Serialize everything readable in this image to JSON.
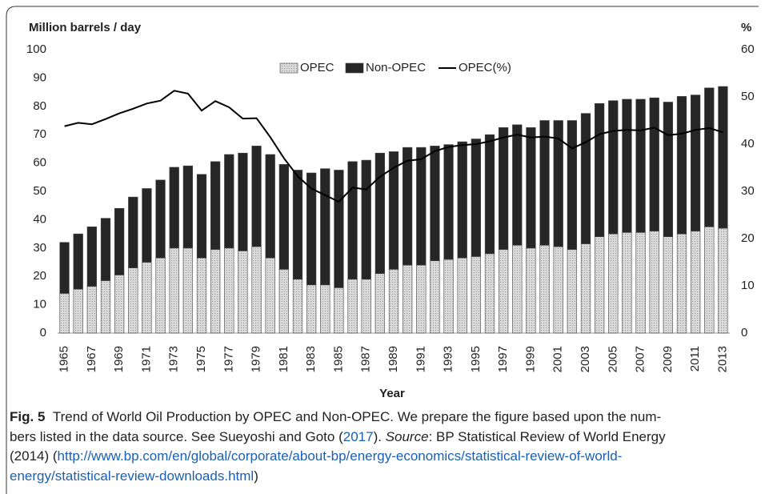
{
  "chart_data": {
    "type": "stacked_bar_line",
    "ylabel": "Million barrels / day",
    "y2label": "%",
    "xlabel": "Year",
    "categories": [
      "1965",
      null,
      "1967",
      null,
      "1969",
      null,
      "1971",
      null,
      "1973",
      null,
      "1975",
      null,
      "1977",
      null,
      "1979",
      null,
      "1981",
      null,
      "1983",
      null,
      "1985",
      null,
      "1987",
      null,
      "1989",
      null,
      "1991",
      null,
      "1993",
      null,
      "1995",
      null,
      "1997",
      null,
      "1999",
      null,
      "2001",
      null,
      "2003",
      null,
      "2005",
      null,
      "2007",
      null,
      "2009",
      null,
      "2011",
      null,
      "2013"
    ],
    "series": [
      {
        "name": "OPEC",
        "color": "#d9d9d9",
        "values": [
          14,
          15.5,
          16.5,
          18.5,
          20.5,
          23,
          25,
          26.5,
          30,
          30,
          26.5,
          29.5,
          30,
          29,
          30.5,
          26.5,
          22.5,
          19,
          17,
          17,
          16,
          19,
          19,
          21,
          22.5,
          24,
          24,
          25.5,
          26,
          26.5,
          27,
          28,
          29.5,
          31,
          30,
          31,
          30.5,
          29.5,
          31.5,
          34,
          35,
          35.5,
          35.5,
          36,
          34,
          35,
          36,
          37.5,
          37
        ]
      },
      {
        "name": "Non-OPEC",
        "color": "#262626",
        "values": [
          18,
          19.5,
          21,
          22,
          23.5,
          25,
          26,
          27.5,
          28.5,
          29,
          29.5,
          31,
          33,
          34.5,
          35.5,
          36.5,
          37,
          38.5,
          39.5,
          41,
          41.5,
          41.5,
          42,
          42.5,
          41.5,
          41.5,
          41.5,
          40.5,
          40.5,
          41,
          41.5,
          42,
          43,
          42.5,
          42.5,
          44,
          44.5,
          45.5,
          46,
          47,
          47,
          47,
          47,
          47,
          47.5,
          48.5,
          48,
          49,
          50
        ]
      },
      {
        "name": "OPEC(%)",
        "color": "#000000",
        "axis": "y2",
        "values": [
          43.8,
          44.5,
          44.2,
          45.3,
          46.5,
          47.5,
          48.6,
          49.2,
          51.3,
          50.7,
          47.1,
          49.1,
          47.8,
          45.4,
          45.5,
          41.5,
          37.0,
          33.2,
          30.6,
          29.2,
          27.8,
          30.8,
          30.4,
          33.1,
          35.0,
          36.5,
          36.8,
          38.5,
          39.4,
          39.8,
          40.0,
          40.6,
          41.4,
          42.0,
          41.4,
          41.6,
          41.2,
          39.1,
          40.4,
          42.1,
          42.8,
          43.0,
          42.9,
          43.5,
          41.9,
          42.2,
          43.0,
          43.4,
          42.5
        ]
      }
    ],
    "ylim": [
      0,
      100
    ],
    "yticks": [
      0,
      10,
      20,
      30,
      40,
      50,
      60,
      70,
      80,
      90,
      100
    ],
    "y2lim": [
      0,
      60
    ],
    "y2ticks": [
      0,
      10,
      20,
      30,
      40,
      50,
      60
    ],
    "legend": "top"
  },
  "caption": {
    "label": "Fig. 5",
    "text1": "Trend of World Oil Production by OPEC and Non-OPEC. We prepare the figure based upon the num-",
    "text2a": "bers listed in the data source. See Sueyoshi and Goto (",
    "ref": "2017",
    "text2b": "). ",
    "source": "Source",
    "text2c": ": BP Statistical Review of World Energy",
    "text3a": "(2014) (",
    "url1": "http://www.bp.com/en/global/corporate/about-bp/energy-economics/statistical-review-of-world-",
    "url2": "energy/statistical-review-downloads.html",
    "close": ")"
  }
}
